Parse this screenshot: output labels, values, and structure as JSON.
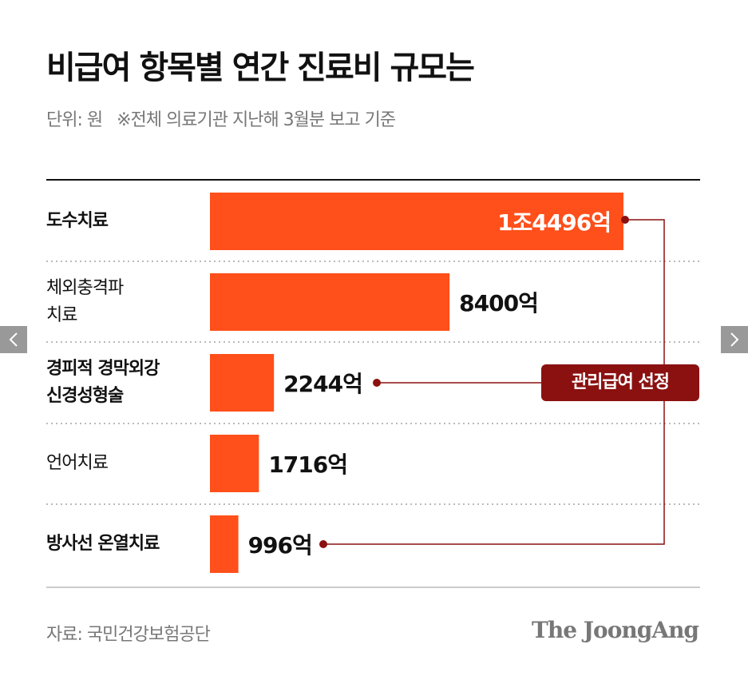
{
  "chart_data": {
    "type": "bar",
    "title": "비급여 항목별 연간 진료비 규모는",
    "subtitle": "단위: 원   ※전체 의료기관 지난해 3월분 보고 기준",
    "categories": [
      "도수치료",
      "체외충격파\n치료",
      "경피적 경막외강\n신경성형술",
      "언어치료",
      "방사선 온열치료"
    ],
    "values": [
      14496,
      8400,
      2244,
      1716,
      996
    ],
    "value_labels": [
      "1조4496억",
      "8400억",
      "2244억",
      "1716억",
      "996억"
    ],
    "color": "#ff4f1a",
    "annotation": "관리급여 선정",
    "source": "자료: 국민건강보험공단",
    "brand": "The JoongAng"
  }
}
